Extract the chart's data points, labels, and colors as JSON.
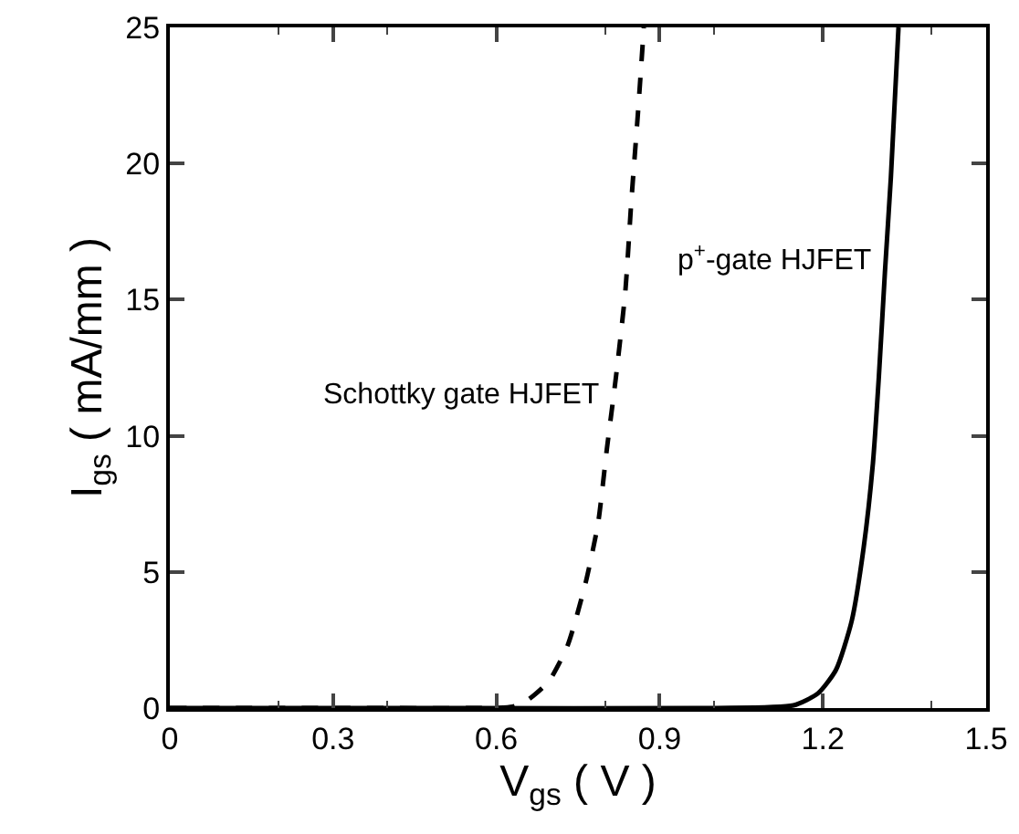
{
  "chart_data": {
    "type": "line",
    "xlabel": "V$_{gs}$ ( V )",
    "ylabel": "I$_{gs}$ ( mA/mm )",
    "xlim": [
      0,
      1.5
    ],
    "xticks": [
      0,
      0.3,
      0.6,
      0.9,
      1.2,
      1.5
    ],
    "ylim": [
      0,
      25
    ],
    "yticks": [
      0,
      5,
      10,
      15,
      20,
      25
    ],
    "grid": false,
    "legend": false,
    "marker": "none",
    "series": [
      {
        "name": "Schottky gate HJFET",
        "color": "#000000",
        "line_style": "dashed",
        "x": [
          0,
          0.3,
          0.55,
          0.63,
          0.658,
          0.697,
          0.731,
          0.764,
          0.787,
          0.803,
          0.82,
          0.837,
          0.848,
          0.86,
          0.871
        ],
        "values": [
          0,
          0,
          0,
          0.05,
          0.3,
          1.0,
          2.3,
          4.6,
          6.8,
          9.5,
          12.2,
          15.3,
          18.6,
          21.8,
          25
        ]
      },
      {
        "name": "p$^{+}$-gate HJFET",
        "color": "#000000",
        "line_style": "solid",
        "x": [
          0,
          0.5,
          1.0,
          1.146,
          1.191,
          1.224,
          1.253,
          1.275,
          1.292,
          1.303,
          1.314,
          1.325,
          1.339
        ],
        "values": [
          0,
          0,
          0,
          0.1,
          0.54,
          1.4,
          3.2,
          5.9,
          9.0,
          12.2,
          16.0,
          19.5,
          25
        ]
      }
    ]
  }
}
